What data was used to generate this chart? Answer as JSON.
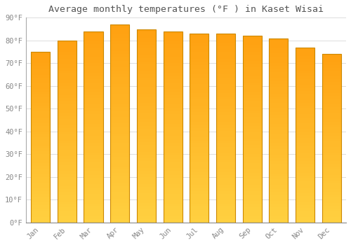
{
  "title": "Average monthly temperatures (°F ) in Kaset Wisai",
  "months": [
    "Jan",
    "Feb",
    "Mar",
    "Apr",
    "May",
    "Jun",
    "Jul",
    "Aug",
    "Sep",
    "Oct",
    "Nov",
    "Dec"
  ],
  "values": [
    75,
    80,
    84,
    87,
    85,
    84,
    83,
    83,
    82,
    81,
    77,
    74
  ],
  "bar_color_bottom": "#FFD040",
  "bar_color_top": "#FFA010",
  "bar_edge_color": "#CC8800",
  "background_color": "#FFFFFF",
  "grid_color": "#DDDDDD",
  "ylim": [
    0,
    90
  ],
  "yticks": [
    0,
    10,
    20,
    30,
    40,
    50,
    60,
    70,
    80,
    90
  ],
  "ytick_labels": [
    "0°F",
    "10°F",
    "20°F",
    "30°F",
    "40°F",
    "50°F",
    "60°F",
    "70°F",
    "80°F",
    "90°F"
  ],
  "title_fontsize": 9.5,
  "tick_fontsize": 7.5,
  "title_color": "#555555",
  "tick_color": "#888888",
  "bar_width": 0.72,
  "n_grad": 60
}
